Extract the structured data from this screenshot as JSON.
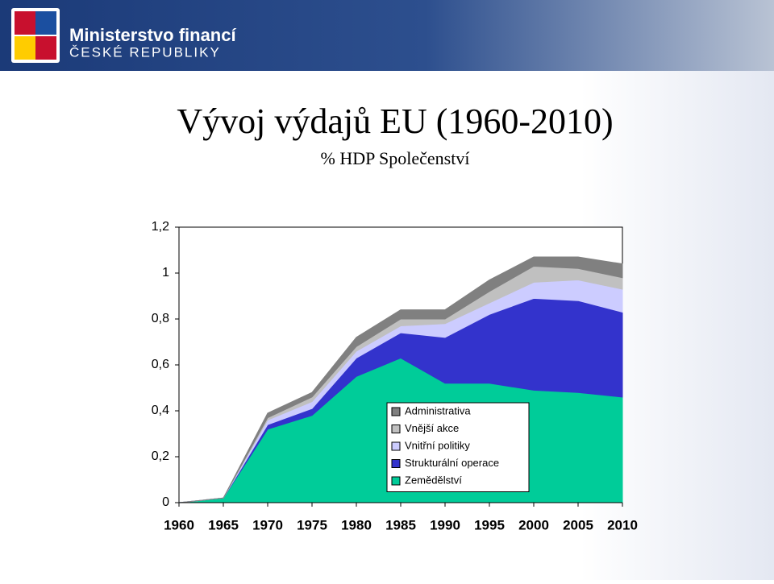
{
  "header": {
    "line1": "Ministerstvo financí",
    "line2": "ČESKÉ REPUBLIKY"
  },
  "chart_data": {
    "type": "stacked-area",
    "title": "Vývoj výdajů EU (1960-2010)",
    "subtitle": "% HDP Společenství",
    "x": [
      1960,
      1965,
      1970,
      1975,
      1980,
      1985,
      1990,
      1995,
      2000,
      2005,
      2010
    ],
    "xlim": [
      1960,
      2010
    ],
    "ylim": [
      0,
      1.2
    ],
    "yticks": [
      0,
      {
        "value": 0.2,
        "label": "0,2"
      },
      {
        "value": 0.4,
        "label": "0,4"
      },
      {
        "value": 0.6,
        "label": "0,6"
      },
      {
        "value": 0.8,
        "label": "0,8"
      },
      1,
      {
        "value": 1.2,
        "label": "1,2"
      }
    ],
    "series": [
      {
        "name": "Zemědělství",
        "color": "#00cc99",
        "values": [
          0,
          0.02,
          0.32,
          0.38,
          0.55,
          0.63,
          0.52,
          0.52,
          0.49,
          0.48,
          0.46
        ]
      },
      {
        "name": "Strukturální operace",
        "color": "#3333cc",
        "values": [
          0,
          0,
          0.02,
          0.03,
          0.08,
          0.11,
          0.2,
          0.3,
          0.4,
          0.4,
          0.37
        ]
      },
      {
        "name": "Vnitřní politiky",
        "color": "#ccccff",
        "values": [
          0,
          0,
          0.02,
          0.03,
          0.03,
          0.03,
          0.06,
          0.05,
          0.07,
          0.09,
          0.1
        ]
      },
      {
        "name": "Vnější akce",
        "color": "#c0c0c0",
        "values": [
          0,
          0,
          0.01,
          0.02,
          0.02,
          0.03,
          0.02,
          0.05,
          0.07,
          0.05,
          0.05
        ]
      },
      {
        "name": "Administrativa",
        "color": "#808080",
        "values": [
          0,
          0,
          0.02,
          0.02,
          0.04,
          0.04,
          0.04,
          0.05,
          0.04,
          0.05,
          0.06
        ]
      }
    ]
  }
}
